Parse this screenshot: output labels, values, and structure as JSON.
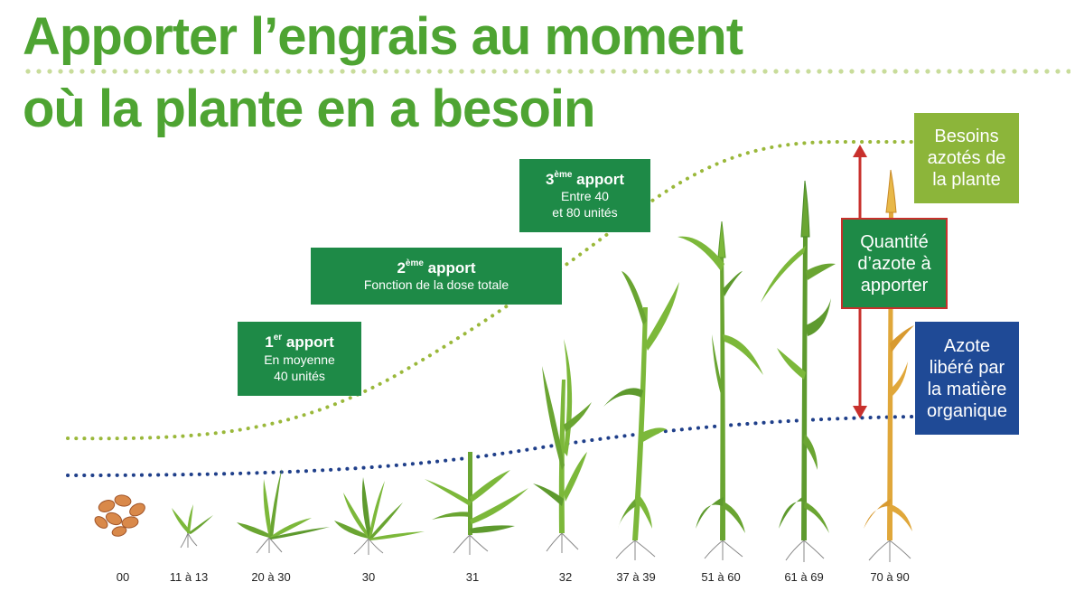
{
  "title": {
    "line1": "Apporter l’engrais au moment",
    "line2": "où la plante en a besoin"
  },
  "apports": [
    {
      "num": "1",
      "sup": "er",
      "label": "apport",
      "desc": [
        "En moyenne",
        "40 unités"
      ]
    },
    {
      "num": "2",
      "sup": "ème",
      "label": "apport",
      "desc": [
        "Fonction de la dose totale"
      ]
    },
    {
      "num": "3",
      "sup": "ème",
      "label": "apport",
      "desc": [
        "Entre 40",
        "et 80 unités"
      ]
    }
  ],
  "besoins": [
    "Besoins",
    "azotés de",
    "la plante"
  ],
  "quantite": [
    "Quantité",
    "d’azote à",
    "apporter"
  ],
  "azote": [
    "Azote",
    "libéré par",
    "la matière",
    "organique"
  ],
  "stages": [
    "00",
    "11 à 13",
    "20 à 30",
    "30",
    "31",
    "32",
    "37 à 39",
    "51 à 60",
    "61 à 69",
    "70 à 90"
  ],
  "colors": {
    "title": "#4ea432",
    "apport_box": "#1e8a47",
    "besoins_box": "#8cb53a",
    "besoins_curve": "#9ab83a",
    "azote_box": "#1f4a96",
    "azote_curve": "#1f3f8a",
    "arrow": "#c8302c",
    "plant": "#7cb83a",
    "plant_dark": "#5e9a2e",
    "mature_plant": "#e0a73a",
    "seed": "#d9894a",
    "roots": "#888888"
  }
}
